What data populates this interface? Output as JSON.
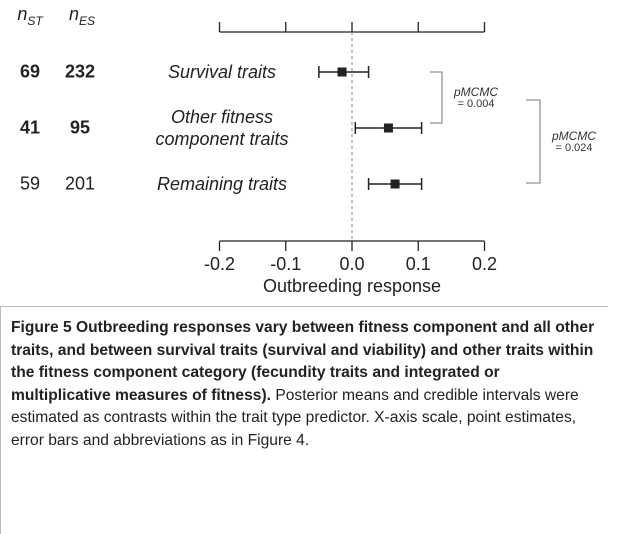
{
  "chart_data": {
    "type": "forest",
    "categories": [
      "Survival traits",
      "Other fitness component traits",
      "Remaining traits"
    ],
    "values": [
      -0.015,
      0.055,
      0.065
    ],
    "lower": [
      -0.05,
      0.005,
      0.025
    ],
    "upper": [
      0.025,
      0.105,
      0.105
    ],
    "columns": [
      {
        "symbol": "n",
        "subscript": "ST",
        "values": [
          69,
          41,
          59
        ]
      },
      {
        "symbol": "n",
        "subscript": "ES",
        "values": [
          232,
          95,
          201
        ]
      }
    ],
    "bold_rows": [
      true,
      true,
      false
    ],
    "comparisons": [
      {
        "label": "pMCMC",
        "value": 0.004,
        "value_label": "= 0.004",
        "rows": [
          0,
          1
        ]
      },
      {
        "label": "pMCMC",
        "value": 0.024,
        "value_label": "= 0.024",
        "rows": [
          1,
          2
        ]
      }
    ],
    "x_label": "Outbreeding response",
    "xlim": [
      -0.2,
      0.2
    ],
    "xticks": [
      -0.2,
      -0.1,
      {
        "value": 0,
        "label": "0.0"
      },
      0.1,
      0.2
    ],
    "color": "#222222"
  },
  "caption": {
    "label": "Figure 5",
    "title": "Outbreeding responses vary between fitness component and all other traits, and between survival traits (survival and viability) and other traits within the fitness component category (fecundity traits and integrated or multiplicative measures of fitness).",
    "text": "Posterior means and credible intervals were estimated as contrasts within the trait type predictor. X-axis scale, point estimates, error bars and abbreviations as in Figure 4."
  }
}
